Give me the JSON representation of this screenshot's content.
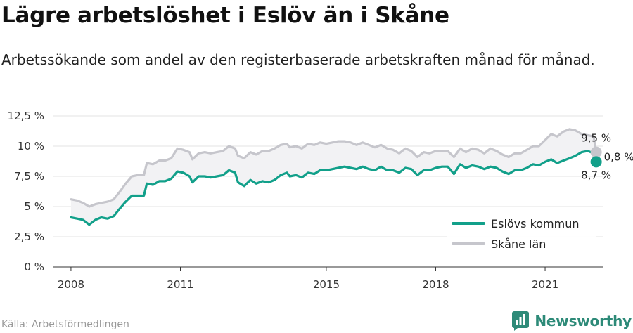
{
  "header": {
    "title": "Lägre arbetslöshet i Eslöv än i Skåne",
    "subtitle": "Arbetssökande som andel av den registerbaserade arbetskraften månad för månad."
  },
  "footer": {
    "source": "Källa: Arbetsförmedlingen",
    "brand": "Newsworthy",
    "brand_color": "#2d8a78"
  },
  "chart_data": {
    "type": "line",
    "title": "Lägre arbetslöshet i Eslöv än i Skåne",
    "subtitle": "Arbetssökande som andel av den registerbaserade arbetskraften månad för månad.",
    "xlabel": "",
    "ylabel": "",
    "x_range": [
      2007.5,
      2022.6
    ],
    "y_range": [
      0,
      12.5
    ],
    "x_ticks": [
      {
        "value": 2008,
        "label": "2008"
      },
      {
        "value": 2011,
        "label": "2011"
      },
      {
        "value": 2015,
        "label": "2015"
      },
      {
        "value": 2018,
        "label": "2018"
      },
      {
        "value": 2021,
        "label": "2021"
      }
    ],
    "y_ticks": [
      {
        "value": 0,
        "label": "0 %"
      },
      {
        "value": 2.5,
        "label": "2,5 %"
      },
      {
        "value": 5,
        "label": "5 %"
      },
      {
        "value": 7.5,
        "label": "7,5 %"
      },
      {
        "value": 10,
        "label": "10 %"
      },
      {
        "value": 12.5,
        "label": "12,5 %"
      }
    ],
    "grid": "horizontal",
    "legend_position": "bottom-right",
    "series": [
      {
        "name": "Eslövs kommun",
        "color": "#12a08a",
        "points": [
          [
            2008.0,
            4.1
          ],
          [
            2008.17,
            4.0
          ],
          [
            2008.33,
            3.9
          ],
          [
            2008.5,
            3.5
          ],
          [
            2008.67,
            3.9
          ],
          [
            2008.83,
            4.1
          ],
          [
            2009.0,
            4.0
          ],
          [
            2009.17,
            4.2
          ],
          [
            2009.33,
            4.8
          ],
          [
            2009.5,
            5.4
          ],
          [
            2009.67,
            5.9
          ],
          [
            2009.83,
            5.9
          ],
          [
            2010.0,
            5.9
          ],
          [
            2010.08,
            6.9
          ],
          [
            2010.25,
            6.8
          ],
          [
            2010.42,
            7.1
          ],
          [
            2010.58,
            7.1
          ],
          [
            2010.75,
            7.3
          ],
          [
            2010.92,
            7.9
          ],
          [
            2011.08,
            7.8
          ],
          [
            2011.25,
            7.5
          ],
          [
            2011.33,
            7.0
          ],
          [
            2011.5,
            7.5
          ],
          [
            2011.67,
            7.5
          ],
          [
            2011.83,
            7.4
          ],
          [
            2012.0,
            7.5
          ],
          [
            2012.17,
            7.6
          ],
          [
            2012.33,
            8.0
          ],
          [
            2012.5,
            7.8
          ],
          [
            2012.58,
            7.0
          ],
          [
            2012.75,
            6.7
          ],
          [
            2012.92,
            7.2
          ],
          [
            2013.08,
            6.9
          ],
          [
            2013.25,
            7.1
          ],
          [
            2013.42,
            7.0
          ],
          [
            2013.58,
            7.2
          ],
          [
            2013.75,
            7.6
          ],
          [
            2013.92,
            7.8
          ],
          [
            2014.0,
            7.5
          ],
          [
            2014.17,
            7.6
          ],
          [
            2014.33,
            7.4
          ],
          [
            2014.5,
            7.8
          ],
          [
            2014.67,
            7.7
          ],
          [
            2014.83,
            8.0
          ],
          [
            2015.0,
            8.0
          ],
          [
            2015.17,
            8.1
          ],
          [
            2015.33,
            8.2
          ],
          [
            2015.5,
            8.3
          ],
          [
            2015.67,
            8.2
          ],
          [
            2015.83,
            8.1
          ],
          [
            2016.0,
            8.3
          ],
          [
            2016.17,
            8.1
          ],
          [
            2016.33,
            8.0
          ],
          [
            2016.5,
            8.3
          ],
          [
            2016.67,
            8.0
          ],
          [
            2016.83,
            8.0
          ],
          [
            2017.0,
            7.8
          ],
          [
            2017.17,
            8.2
          ],
          [
            2017.33,
            8.1
          ],
          [
            2017.5,
            7.6
          ],
          [
            2017.67,
            8.0
          ],
          [
            2017.83,
            8.0
          ],
          [
            2018.0,
            8.2
          ],
          [
            2018.17,
            8.3
          ],
          [
            2018.33,
            8.3
          ],
          [
            2018.5,
            7.7
          ],
          [
            2018.67,
            8.5
          ],
          [
            2018.83,
            8.2
          ],
          [
            2019.0,
            8.4
          ],
          [
            2019.17,
            8.3
          ],
          [
            2019.33,
            8.1
          ],
          [
            2019.5,
            8.3
          ],
          [
            2019.67,
            8.2
          ],
          [
            2019.83,
            7.9
          ],
          [
            2020.0,
            7.7
          ],
          [
            2020.17,
            8.0
          ],
          [
            2020.33,
            8.0
          ],
          [
            2020.5,
            8.2
          ],
          [
            2020.67,
            8.5
          ],
          [
            2020.83,
            8.4
          ],
          [
            2021.0,
            8.7
          ],
          [
            2021.17,
            8.9
          ],
          [
            2021.33,
            8.6
          ],
          [
            2021.5,
            8.8
          ],
          [
            2021.67,
            9.0
          ],
          [
            2021.83,
            9.2
          ],
          [
            2022.0,
            9.5
          ],
          [
            2022.17,
            9.6
          ],
          [
            2022.33,
            9.4
          ],
          [
            2022.4,
            8.7
          ]
        ]
      },
      {
        "name": "Skåne län",
        "color": "#c6c6cc",
        "points": [
          [
            2008.0,
            5.6
          ],
          [
            2008.17,
            5.5
          ],
          [
            2008.33,
            5.3
          ],
          [
            2008.5,
            5.0
          ],
          [
            2008.67,
            5.2
          ],
          [
            2008.83,
            5.3
          ],
          [
            2009.0,
            5.4
          ],
          [
            2009.17,
            5.6
          ],
          [
            2009.33,
            6.2
          ],
          [
            2009.5,
            6.9
          ],
          [
            2009.67,
            7.5
          ],
          [
            2009.83,
            7.6
          ],
          [
            2010.0,
            7.6
          ],
          [
            2010.08,
            8.6
          ],
          [
            2010.25,
            8.5
          ],
          [
            2010.42,
            8.8
          ],
          [
            2010.58,
            8.8
          ],
          [
            2010.75,
            9.0
          ],
          [
            2010.92,
            9.8
          ],
          [
            2011.08,
            9.7
          ],
          [
            2011.25,
            9.5
          ],
          [
            2011.33,
            8.9
          ],
          [
            2011.5,
            9.4
          ],
          [
            2011.67,
            9.5
          ],
          [
            2011.83,
            9.4
          ],
          [
            2012.0,
            9.5
          ],
          [
            2012.17,
            9.6
          ],
          [
            2012.33,
            10.0
          ],
          [
            2012.5,
            9.8
          ],
          [
            2012.58,
            9.2
          ],
          [
            2012.75,
            9.0
          ],
          [
            2012.92,
            9.5
          ],
          [
            2013.08,
            9.3
          ],
          [
            2013.25,
            9.6
          ],
          [
            2013.42,
            9.6
          ],
          [
            2013.58,
            9.8
          ],
          [
            2013.75,
            10.1
          ],
          [
            2013.92,
            10.2
          ],
          [
            2014.0,
            9.9
          ],
          [
            2014.17,
            10.0
          ],
          [
            2014.33,
            9.8
          ],
          [
            2014.5,
            10.2
          ],
          [
            2014.67,
            10.1
          ],
          [
            2014.83,
            10.3
          ],
          [
            2015.0,
            10.2
          ],
          [
            2015.17,
            10.3
          ],
          [
            2015.33,
            10.4
          ],
          [
            2015.5,
            10.4
          ],
          [
            2015.67,
            10.3
          ],
          [
            2015.83,
            10.1
          ],
          [
            2016.0,
            10.3
          ],
          [
            2016.17,
            10.1
          ],
          [
            2016.33,
            9.9
          ],
          [
            2016.5,
            10.1
          ],
          [
            2016.67,
            9.8
          ],
          [
            2016.83,
            9.7
          ],
          [
            2017.0,
            9.4
          ],
          [
            2017.17,
            9.8
          ],
          [
            2017.33,
            9.6
          ],
          [
            2017.5,
            9.1
          ],
          [
            2017.67,
            9.5
          ],
          [
            2017.83,
            9.4
          ],
          [
            2018.0,
            9.6
          ],
          [
            2018.17,
            9.6
          ],
          [
            2018.33,
            9.6
          ],
          [
            2018.5,
            9.1
          ],
          [
            2018.67,
            9.8
          ],
          [
            2018.83,
            9.5
          ],
          [
            2019.0,
            9.8
          ],
          [
            2019.17,
            9.7
          ],
          [
            2019.33,
            9.4
          ],
          [
            2019.5,
            9.8
          ],
          [
            2019.67,
            9.6
          ],
          [
            2019.83,
            9.3
          ],
          [
            2020.0,
            9.1
          ],
          [
            2020.17,
            9.4
          ],
          [
            2020.33,
            9.4
          ],
          [
            2020.5,
            9.7
          ],
          [
            2020.67,
            10.0
          ],
          [
            2020.83,
            10.0
          ],
          [
            2021.0,
            10.5
          ],
          [
            2021.17,
            11.0
          ],
          [
            2021.33,
            10.8
          ],
          [
            2021.5,
            11.2
          ],
          [
            2021.67,
            11.4
          ],
          [
            2021.83,
            11.3
          ],
          [
            2022.0,
            11.0
          ],
          [
            2022.17,
            10.9
          ],
          [
            2022.33,
            10.8
          ],
          [
            2022.4,
            9.5
          ]
        ]
      }
    ],
    "end_labels": {
      "upper": "9,5 %",
      "lower": "8,7 %",
      "difference": "0,8 %"
    },
    "legend": [
      {
        "label": "Eslövs kommun",
        "color": "#12a08a"
      },
      {
        "label": "Skåne län",
        "color": "#c6c6cc"
      }
    ]
  }
}
